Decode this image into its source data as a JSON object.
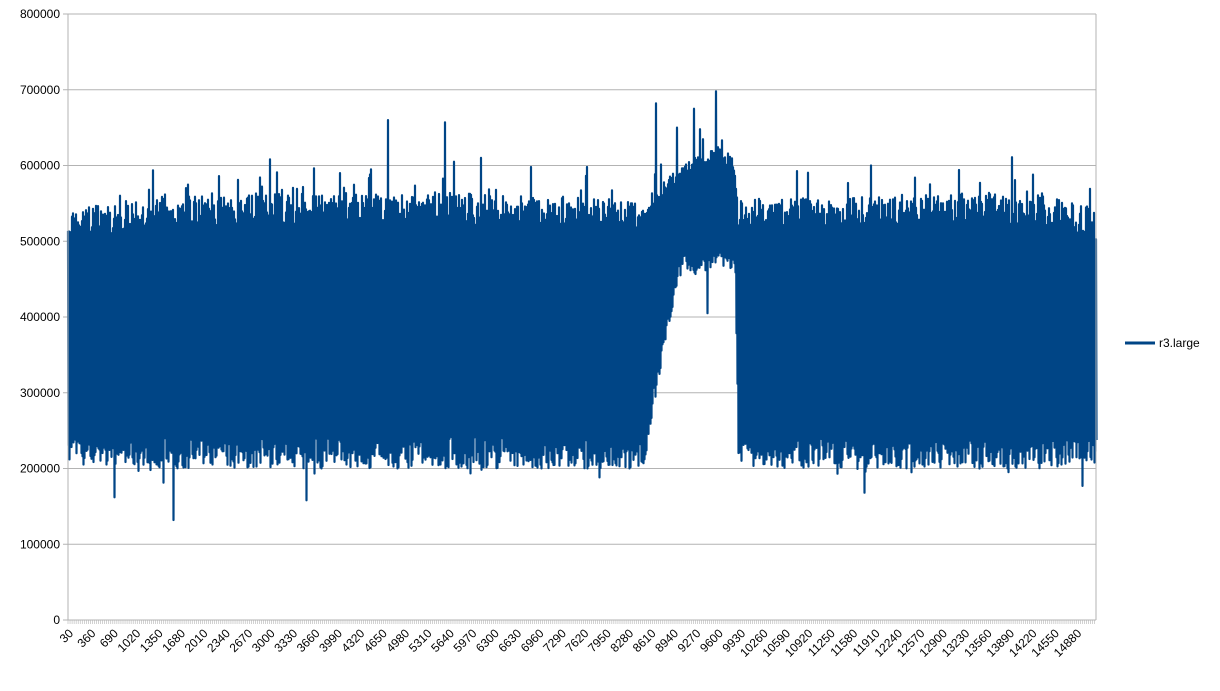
{
  "chart_data": {
    "type": "line",
    "title": "",
    "xlabel": "",
    "ylabel": "",
    "ylim": [
      0,
      800000
    ],
    "yticks": [
      0,
      100000,
      200000,
      300000,
      400000,
      500000,
      600000,
      700000,
      800000
    ],
    "ytick_labels": [
      "0",
      "100000",
      "200000",
      "300000",
      "400000",
      "500000",
      "600000",
      "700000",
      "800000"
    ],
    "xlim": [
      30,
      15171
    ],
    "xtick_step": 330,
    "xtick_labels": [
      "30",
      "360",
      "690",
      "1020",
      "1350",
      "1680",
      "2010",
      "2340",
      "2670",
      "3000",
      "3330",
      "3660",
      "3990",
      "4320",
      "4650",
      "4980",
      "5310",
      "5640",
      "5970",
      "6300",
      "6630",
      "6960",
      "7290",
      "7620",
      "7950",
      "8280",
      "8610",
      "8940",
      "9270",
      "9600",
      "9930",
      "10260",
      "10590",
      "10920",
      "11250",
      "11580",
      "11910",
      "12240",
      "12570",
      "12900",
      "13230",
      "13560",
      "13890",
      "14220",
      "14550",
      "14880"
    ],
    "grid": true,
    "legend_position": "right",
    "series": [
      {
        "name": "r3.large",
        "color": "#004586",
        "x_range": [
          30,
          15171
        ],
        "envelope": {
          "x": [
            30,
            900,
            1500,
            2500,
            3500,
            4700,
            5500,
            6500,
            7500,
            8500,
            9050,
            9270,
            9600,
            9850,
            9900,
            10500,
            11500,
            12500,
            13500,
            14500,
            15171
          ],
          "upper": [
            540000,
            555000,
            560000,
            560000,
            565000,
            560000,
            565000,
            560000,
            560000,
            555000,
            600000,
            615000,
            625000,
            610000,
            555000,
            555000,
            560000,
            560000,
            565000,
            560000,
            540000
          ],
          "lower": [
            205000,
            205000,
            200000,
            200000,
            200000,
            200000,
            200000,
            200000,
            200000,
            200000,
            470000,
            455000,
            470000,
            460000,
            205000,
            200000,
            200000,
            200000,
            200000,
            200000,
            210000
          ]
        },
        "peaks": [
          {
            "x": 1575,
            "y": 132000
          },
          {
            "x": 710,
            "y": 162000
          },
          {
            "x": 3540,
            "y": 158000
          },
          {
            "x": 3000,
            "y": 608000
          },
          {
            "x": 4740,
            "y": 660000
          },
          {
            "x": 5580,
            "y": 657000
          },
          {
            "x": 5720,
            "y": 605000
          },
          {
            "x": 6120,
            "y": 610000
          },
          {
            "x": 8690,
            "y": 682000
          },
          {
            "x": 9000,
            "y": 650000
          },
          {
            "x": 9250,
            "y": 675000
          },
          {
            "x": 9570,
            "y": 698000
          },
          {
            "x": 9440,
            "y": 405000
          },
          {
            "x": 9050,
            "y": 455000
          },
          {
            "x": 13940,
            "y": 611000
          },
          {
            "x": 4030,
            "y": 590000
          },
          {
            "x": 7670,
            "y": 598000
          },
          {
            "x": 11850,
            "y": 600000
          },
          {
            "x": 11750,
            "y": 168000
          },
          {
            "x": 14970,
            "y": 177000
          },
          {
            "x": 2250,
            "y": 586000
          },
          {
            "x": 6850,
            "y": 598000
          },
          {
            "x": 13150,
            "y": 594000
          }
        ]
      }
    ]
  }
}
